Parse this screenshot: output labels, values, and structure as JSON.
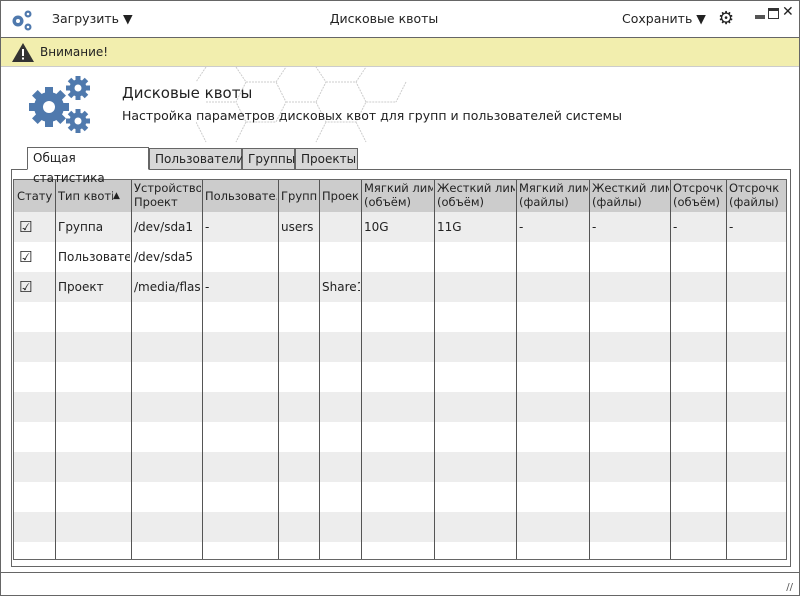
{
  "titlebar": {
    "load_label": "Загрузить",
    "title": "Дисковые квоты",
    "save_label": "Сохранить"
  },
  "warning": {
    "text": "Внимание!"
  },
  "header": {
    "title": "Дисковые квоты",
    "subtitle": "Настройка параметров дисковых квот для групп и пользователей системы"
  },
  "tabs": [
    {
      "label": "Общая статистика",
      "active": true
    },
    {
      "label": "Пользователи"
    },
    {
      "label": "Группы"
    },
    {
      "label": "Проекты"
    }
  ],
  "table": {
    "columns": [
      [
        "Стату",
        ""
      ],
      [
        "Тип квоті",
        ""
      ],
      [
        "Устройство",
        "Проект"
      ],
      [
        "Пользовате.",
        ""
      ],
      [
        "Группі",
        ""
      ],
      [
        "Проек",
        ""
      ],
      [
        "Мягкий лимі",
        "(объём)"
      ],
      [
        "Жесткий лим",
        "(объём)"
      ],
      [
        "Мягкий лимі",
        "(файлы)"
      ],
      [
        "Жесткий лим",
        "(файлы)"
      ],
      [
        "Отсрочк",
        "(объём)"
      ],
      [
        "Отсрочк",
        "(файлы)"
      ]
    ],
    "sort_column": "Тип квоті",
    "sort_direction": "ascending",
    "rows": [
      [
        "☑",
        "Группа",
        "/dev/sda1",
        "-",
        "users",
        "",
        "10G",
        "11G",
        "-",
        "-",
        "-",
        "-"
      ],
      [
        "☑",
        "Пользовате.",
        "/dev/sda5",
        "",
        "",
        "",
        "",
        "",
        "",
        "",
        "",
        ""
      ],
      [
        "☑",
        "Проект",
        "/media/flas",
        "-",
        "",
        "Share1",
        "",
        "",
        "",
        "",
        "",
        ""
      ]
    ]
  }
}
